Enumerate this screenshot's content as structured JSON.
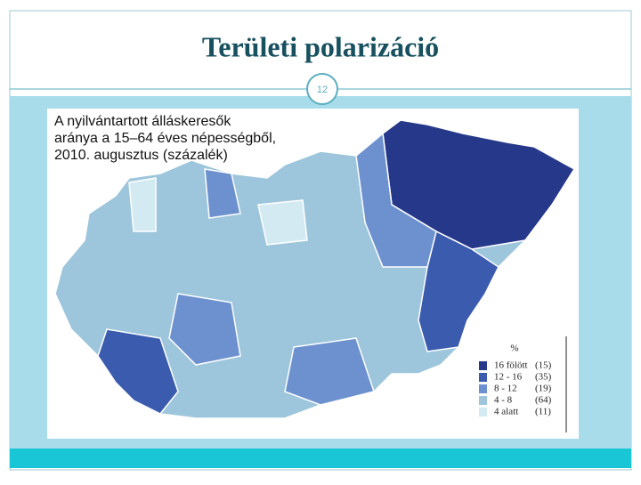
{
  "header": {
    "title": "Területi polarizáció",
    "page_number": "12"
  },
  "map": {
    "caption": [
      "A nyilvántartott álláskeresők",
      "aránya a 15–64 éves népességből,",
      "2010. augusztus (százalék)"
    ],
    "legend": {
      "title": "%",
      "items": [
        {
          "label": "16 fölött",
          "count": "(15)",
          "color": "#26388a"
        },
        {
          "label": "12 - 16",
          "count": "(35)",
          "color": "#3b5cae"
        },
        {
          "label": "8 - 12",
          "count": "(19)",
          "color": "#6d91cf"
        },
        {
          "label": "4 - 8",
          "count": "(64)",
          "color": "#9dc5dc"
        },
        {
          "label": "4 alatt",
          "count": "(11)",
          "color": "#d3eaf3"
        }
      ]
    }
  }
}
